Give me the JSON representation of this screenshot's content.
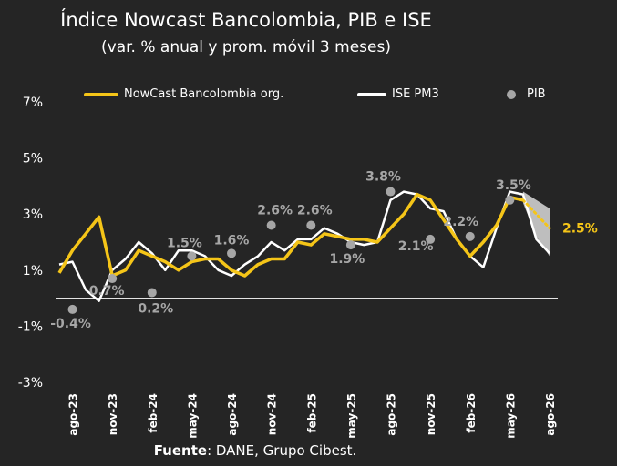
{
  "title": "Índice Nowcast Bancolombia, PIB e ISE",
  "subtitle": "(var. % anual y prom. móvil 3 meses)",
  "source_label": "Fuente",
  "source_text": ": DANE, Grupo Cibest.",
  "colors": {
    "background": "#252525",
    "nowcast": "#f5c518",
    "ise": "#ffffff",
    "pib": "#a6a6a6",
    "band": "#d9d9d9",
    "axis": "#ffffff"
  },
  "chart_data": {
    "type": "line",
    "ylim": [
      -3,
      7
    ],
    "y_ticks": [
      7,
      5,
      3,
      1,
      -1,
      -3
    ],
    "y_tick_labels": [
      "7%",
      "5%",
      "3%",
      "1%",
      "-1%",
      "-3%"
    ],
    "x_months": [
      "jul-23",
      "ago-23",
      "sep-23",
      "oct-23",
      "nov-23",
      "dic-23",
      "ene-24",
      "feb-24",
      "mar-24",
      "abr-24",
      "may-24",
      "jun-24",
      "jul-24",
      "ago-24",
      "sep-24",
      "oct-24",
      "nov-24",
      "dic-24",
      "ene-25",
      "feb-25",
      "mar-25",
      "abr-25",
      "may-25",
      "jun-25",
      "jul-25",
      "ago-25",
      "sep-25",
      "oct-25",
      "nov-25",
      "dic-25",
      "ene-26",
      "feb-26",
      "mar-26",
      "abr-26",
      "may-26",
      "jun-26",
      "jul-26",
      "ago-26"
    ],
    "x_tick_labels": [
      "ago-23",
      "nov-23",
      "feb-24",
      "may-24",
      "ago-24",
      "nov-24",
      "feb-25",
      "may-25",
      "ago-25",
      "nov-25",
      "feb-26",
      "may-26",
      "ago-26"
    ],
    "series": [
      {
        "name": "NowCast Bancolombia org.",
        "values": [
          0.9,
          1.7,
          2.3,
          2.9,
          0.8,
          1.0,
          1.7,
          1.5,
          1.3,
          1.0,
          1.3,
          1.4,
          1.4,
          1.0,
          0.8,
          1.2,
          1.4,
          1.4,
          2.0,
          1.9,
          2.3,
          2.2,
          2.1,
          2.1,
          2.0,
          2.5,
          3.0,
          3.7,
          3.5,
          2.8,
          2.1,
          1.5,
          2.0,
          2.6,
          3.6,
          3.5,
          null,
          null
        ]
      },
      {
        "name": "ISE PM3",
        "values": [
          1.2,
          1.3,
          0.3,
          -0.1,
          1.0,
          1.4,
          2.0,
          1.6,
          1.0,
          1.7,
          1.7,
          1.5,
          1.0,
          0.8,
          1.2,
          1.5,
          2.0,
          1.7,
          2.1,
          2.1,
          2.5,
          2.3,
          2.0,
          1.9,
          2.0,
          3.5,
          3.8,
          3.7,
          3.2,
          3.1,
          2.1,
          1.5,
          1.1,
          2.5,
          3.8,
          3.7,
          2.1,
          1.6
        ]
      }
    ],
    "nowcast_forecast": {
      "x": [
        "jun-26",
        "jul-26",
        "ago-26"
      ],
      "values": [
        3.5,
        3.0,
        2.5
      ]
    },
    "band": {
      "x": [
        "jun-26",
        "jul-26",
        "ago-26"
      ],
      "lower": [
        3.4,
        2.2,
        1.5
      ],
      "upper": [
        3.8,
        3.5,
        3.2
      ]
    },
    "pib_points": [
      {
        "x": "ago-23",
        "value": -0.4,
        "label": "-0.4%"
      },
      {
        "x": "nov-23",
        "value": 0.7,
        "label": "0.7%"
      },
      {
        "x": "feb-24",
        "value": 0.2,
        "label": "0.2%"
      },
      {
        "x": "may-24",
        "value": 1.5,
        "label": "1.5%"
      },
      {
        "x": "ago-24",
        "value": 1.6,
        "label": "1.6%"
      },
      {
        "x": "nov-24",
        "value": 2.6,
        "label": "2.6%"
      },
      {
        "x": "feb-25",
        "value": 2.6,
        "label": "2.6%"
      },
      {
        "x": "may-25",
        "value": 1.9,
        "label": "1.9%"
      },
      {
        "x": "ago-25",
        "value": 3.8,
        "label": "3.8%"
      },
      {
        "x": "nov-25",
        "value": 2.1,
        "label": "2.1%"
      },
      {
        "x": "feb-26",
        "value": 2.2,
        "label": "2.2%"
      },
      {
        "x": "may-26",
        "value": 3.5,
        "label": "3.5%"
      }
    ],
    "forecast_label": {
      "x": "ago-26",
      "value": 2.5,
      "label": "2.5%"
    },
    "legend_placement": "top",
    "grid": false
  },
  "legend": [
    {
      "label": "NowCast Bancolombia org.",
      "kind": "line",
      "color": "#f5c518"
    },
    {
      "label": "ISE PM3",
      "kind": "line",
      "color": "#ffffff"
    },
    {
      "label": "PIB",
      "kind": "dot",
      "color": "#a6a6a6"
    }
  ]
}
